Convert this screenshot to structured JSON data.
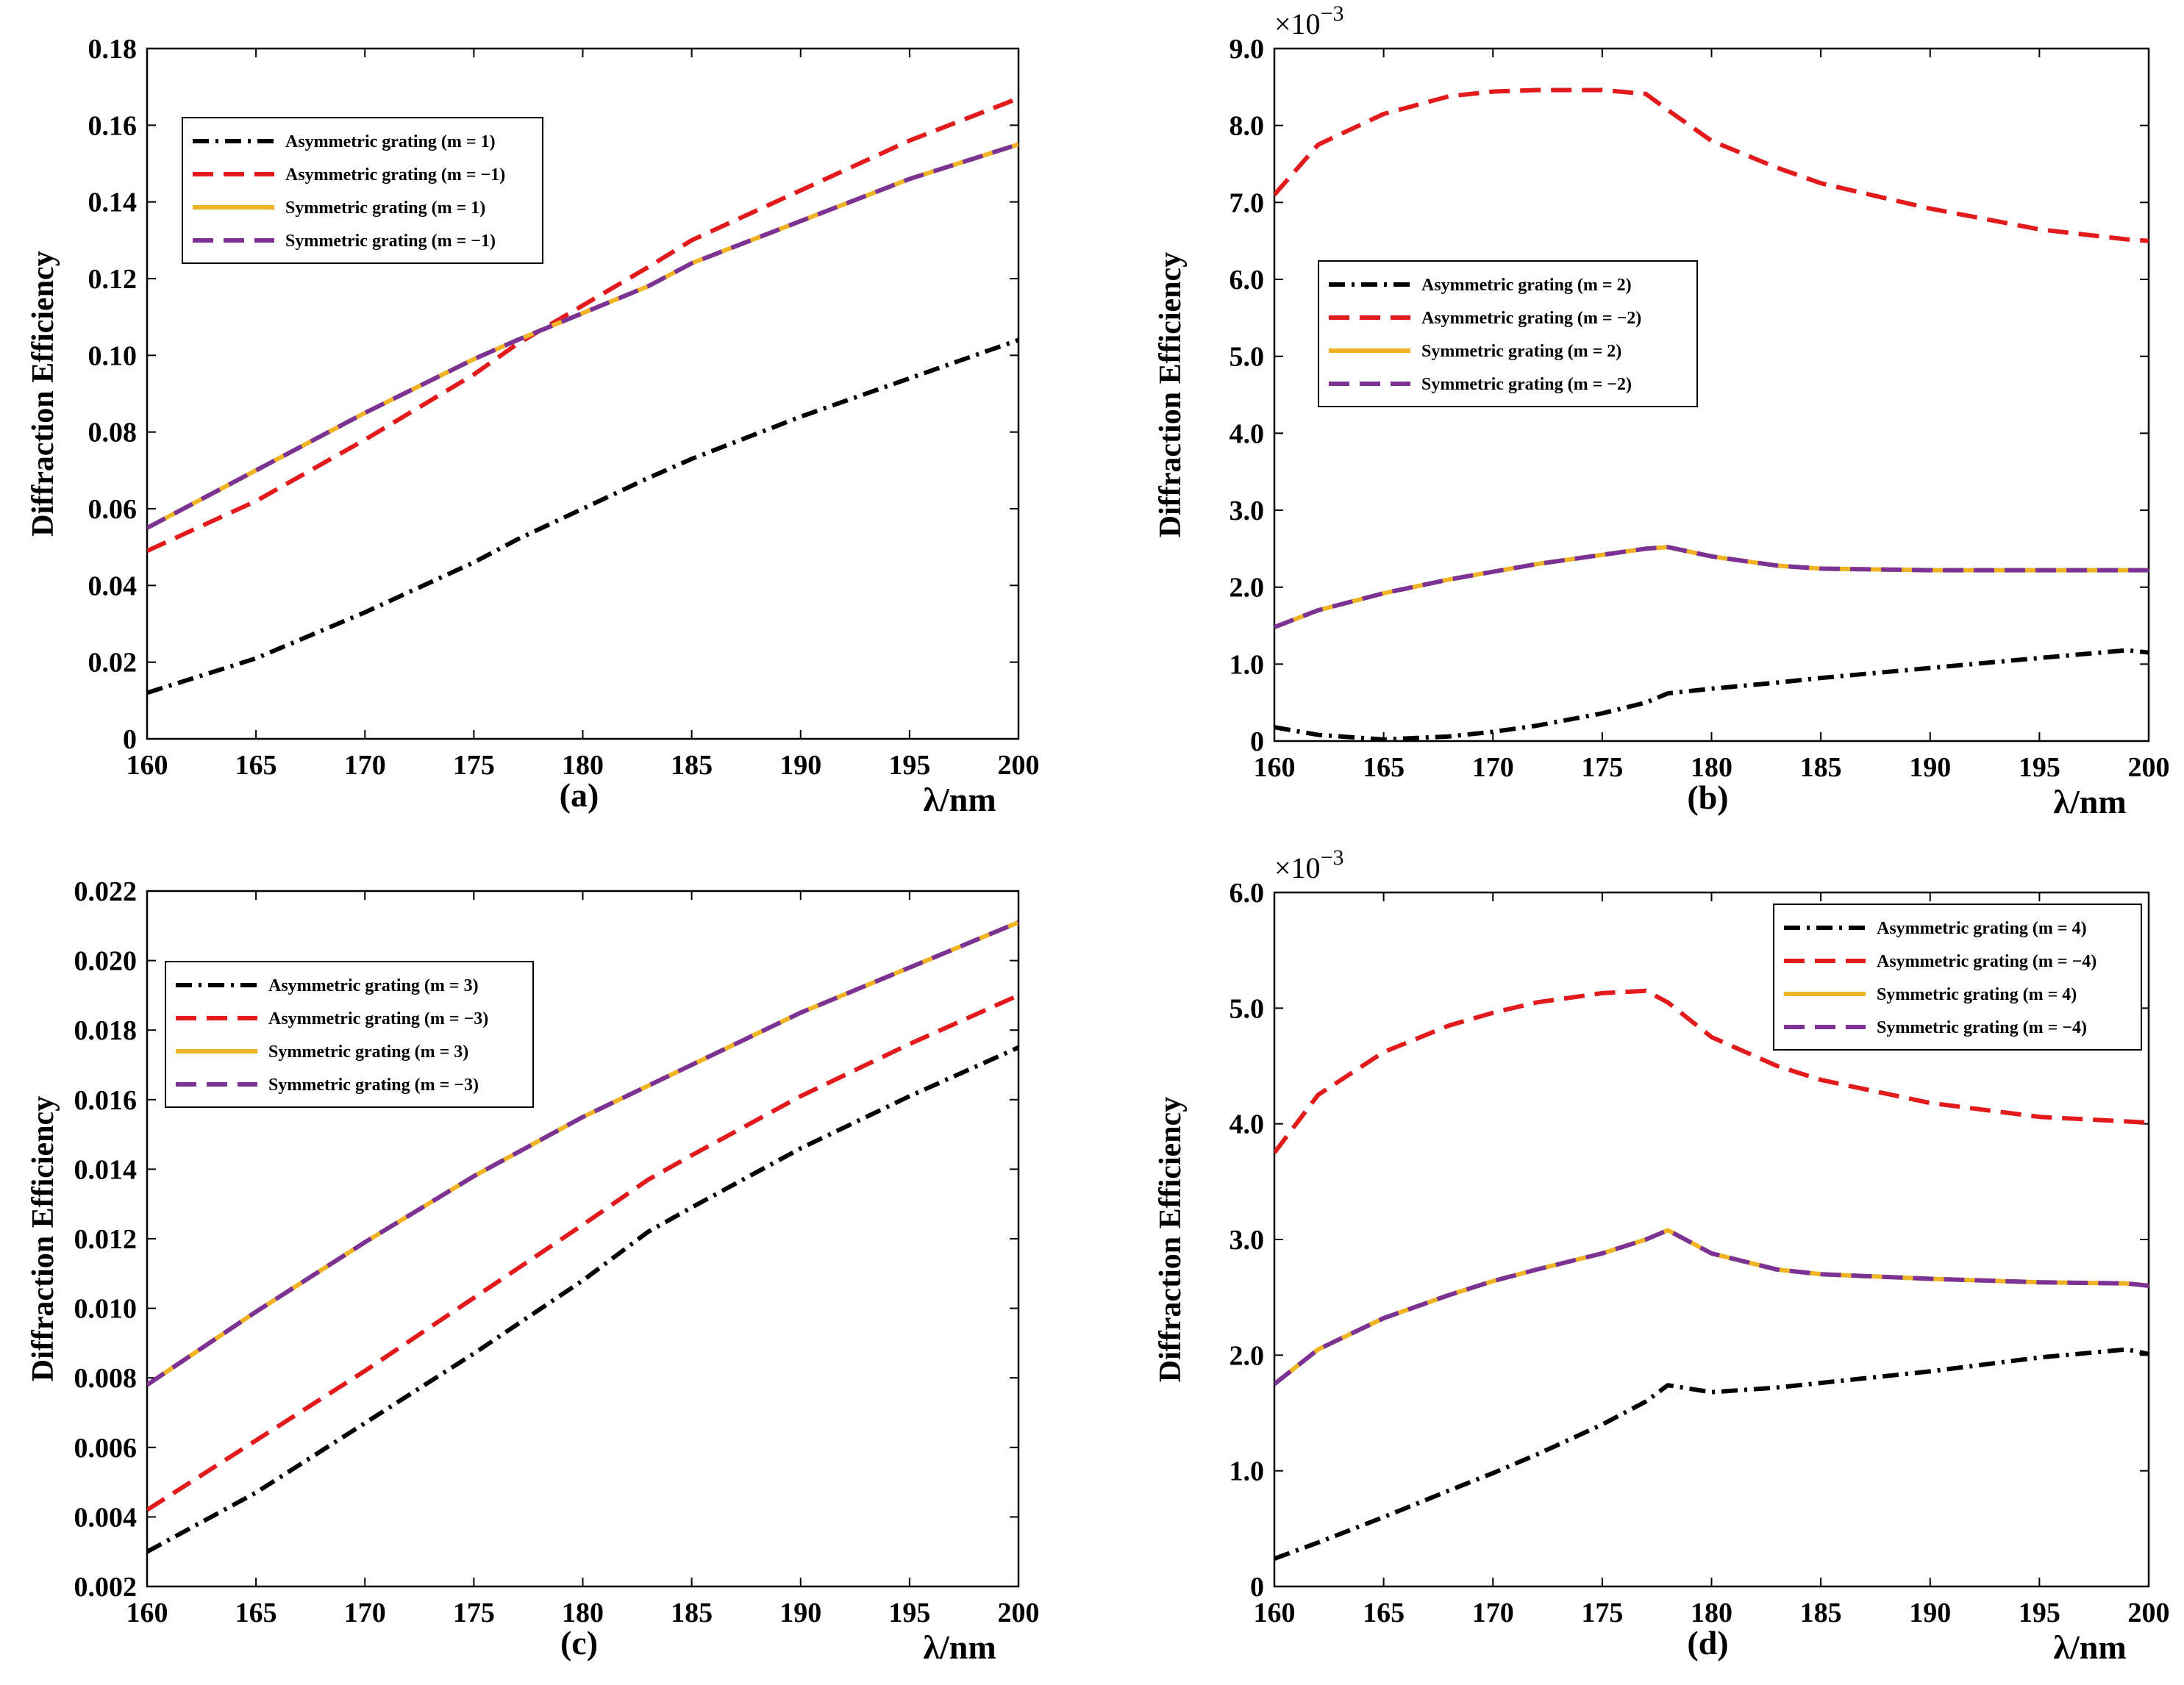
{
  "series_colors": {
    "asym_pos": "#000000",
    "asym_neg": "#e31a1c",
    "sym_pos": "#f0b323",
    "sym_neg": "#7b3294"
  },
  "chart_data": [
    {
      "type": "line",
      "panel": "(a)",
      "xlabel": "λ/nm",
      "ylabel": "Diffraction Efficiency",
      "multiplier": "",
      "xlim": [
        160,
        200
      ],
      "ylim": [
        0,
        0.18
      ],
      "xticks": [
        160,
        165,
        170,
        175,
        180,
        185,
        190,
        195,
        200
      ],
      "yticks": [
        "0",
        "0.02",
        "0.04",
        "0.06",
        "0.08",
        "0.10",
        "0.12",
        "0.14",
        "0.16",
        "0.18"
      ],
      "legend_position": "top-left",
      "x": [
        160,
        165,
        170,
        175,
        177,
        180,
        183,
        185,
        190,
        195,
        200
      ],
      "series": [
        {
          "name": "Asymmetric grating (m = 1)",
          "color": "#000000",
          "style": "dashdot",
          "values": [
            0.012,
            0.021,
            0.033,
            0.046,
            0.052,
            0.06,
            0.068,
            0.073,
            0.084,
            0.094,
            0.104
          ]
        },
        {
          "name": "Asymmetric grating (m = −1)",
          "color": "#e31a1c",
          "style": "dashed",
          "values": [
            0.049,
            0.062,
            0.078,
            0.095,
            0.103,
            0.113,
            0.123,
            0.13,
            0.143,
            0.156,
            0.167
          ]
        },
        {
          "name": "Symmetric grating (m = 1)",
          "color": "#f0b323",
          "style": "solid",
          "values": [
            0.055,
            0.07,
            0.085,
            0.099,
            0.104,
            0.111,
            0.118,
            0.124,
            0.135,
            0.146,
            0.155
          ]
        },
        {
          "name": "Symmetric grating (m = −1)",
          "color": "#7b3294",
          "style": "dashed",
          "values": [
            0.055,
            0.07,
            0.085,
            0.099,
            0.104,
            0.111,
            0.118,
            0.124,
            0.135,
            0.146,
            0.155
          ]
        }
      ]
    },
    {
      "type": "line",
      "panel": "(b)",
      "xlabel": "λ/nm",
      "ylabel": "Diffraction Efficiency",
      "multiplier": "×10",
      "multiplier_exp": "−3",
      "xlim": [
        160,
        200
      ],
      "ylim": [
        0,
        9.0
      ],
      "xticks": [
        160,
        165,
        170,
        175,
        180,
        185,
        190,
        195,
        200
      ],
      "yticks": [
        "0",
        "1.0",
        "2.0",
        "3.0",
        "4.0",
        "5.0",
        "6.0",
        "7.0",
        "8.0",
        "9.0"
      ],
      "legend_position": "center-left",
      "x": [
        160,
        162,
        165,
        168,
        170,
        172,
        175,
        177,
        178,
        180,
        183,
        185,
        190,
        195,
        199,
        200
      ],
      "series": [
        {
          "name": "Asymmetric grating (m = 2)",
          "color": "#000000",
          "style": "dashdot",
          "values": [
            0.18,
            0.08,
            0.02,
            0.06,
            0.12,
            0.2,
            0.36,
            0.5,
            0.62,
            0.68,
            0.76,
            0.82,
            0.95,
            1.08,
            1.18,
            1.15
          ]
        },
        {
          "name": "Asymmetric grating (m = −2)",
          "color": "#e31a1c",
          "style": "dashed",
          "values": [
            7.1,
            7.75,
            8.15,
            8.38,
            8.44,
            8.46,
            8.46,
            8.41,
            8.2,
            7.8,
            7.45,
            7.25,
            6.92,
            6.65,
            6.52,
            6.5
          ]
        },
        {
          "name": "Symmetric grating (m = 2)",
          "color": "#f0b323",
          "style": "solid",
          "values": [
            1.48,
            1.7,
            1.92,
            2.1,
            2.2,
            2.3,
            2.42,
            2.5,
            2.52,
            2.4,
            2.28,
            2.24,
            2.22,
            2.22,
            2.22,
            2.22
          ]
        },
        {
          "name": "Symmetric grating (m = −2)",
          "color": "#7b3294",
          "style": "dashed",
          "values": [
            1.48,
            1.7,
            1.92,
            2.1,
            2.2,
            2.3,
            2.42,
            2.5,
            2.52,
            2.4,
            2.28,
            2.24,
            2.22,
            2.22,
            2.22,
            2.22
          ]
        }
      ]
    },
    {
      "type": "line",
      "panel": "(c)",
      "xlabel": "λ/nm",
      "ylabel": "Diffraction Efficiency",
      "multiplier": "",
      "xlim": [
        160,
        200
      ],
      "ylim": [
        0.002,
        0.022
      ],
      "xticks": [
        160,
        165,
        170,
        175,
        180,
        185,
        190,
        195,
        200
      ],
      "yticks": [
        "0.002",
        "0.004",
        "0.006",
        "0.008",
        "0.010",
        "0.012",
        "0.014",
        "0.016",
        "0.018",
        "0.020",
        "0.022"
      ],
      "legend_position": "top-left",
      "x": [
        160,
        165,
        170,
        175,
        180,
        183,
        185,
        190,
        195,
        200
      ],
      "series": [
        {
          "name": "Asymmetric grating (m = 3)",
          "color": "#000000",
          "style": "dashdot",
          "values": [
            0.003,
            0.0047,
            0.0067,
            0.0087,
            0.0108,
            0.0122,
            0.0129,
            0.0146,
            0.0161,
            0.0175
          ]
        },
        {
          "name": "Asymmetric grating (m = −3)",
          "color": "#e31a1c",
          "style": "dashed",
          "values": [
            0.0042,
            0.0062,
            0.0082,
            0.0103,
            0.0124,
            0.0137,
            0.0144,
            0.0161,
            0.0176,
            0.019
          ]
        },
        {
          "name": "Symmetric grating (m = 3)",
          "color": "#f0b323",
          "style": "solid",
          "values": [
            0.0078,
            0.0099,
            0.0119,
            0.0138,
            0.0155,
            0.0164,
            0.017,
            0.0185,
            0.0198,
            0.0211
          ]
        },
        {
          "name": "Symmetric grating (m = −3)",
          "color": "#7b3294",
          "style": "dashed",
          "values": [
            0.0078,
            0.0099,
            0.0119,
            0.0138,
            0.0155,
            0.0164,
            0.017,
            0.0185,
            0.0198,
            0.0211
          ]
        }
      ]
    },
    {
      "type": "line",
      "panel": "(d)",
      "xlabel": "λ/nm",
      "ylabel": "Diffraction Efficiency",
      "multiplier": "×10",
      "multiplier_exp": "−3",
      "xlim": [
        160,
        200
      ],
      "ylim": [
        0,
        6.0
      ],
      "xticks": [
        160,
        165,
        170,
        175,
        180,
        185,
        190,
        195,
        200
      ],
      "yticks": [
        "0",
        "1.0",
        "2.0",
        "3.0",
        "4.0",
        "5.0",
        "6.0"
      ],
      "legend_position": "top-right",
      "x": [
        160,
        162,
        165,
        168,
        170,
        172,
        175,
        177,
        178,
        180,
        183,
        185,
        190,
        195,
        199,
        200
      ],
      "series": [
        {
          "name": "Asymmetric grating (m = 4)",
          "color": "#000000",
          "style": "dashdot",
          "values": [
            0.24,
            0.38,
            0.6,
            0.83,
            0.98,
            1.14,
            1.4,
            1.6,
            1.74,
            1.68,
            1.72,
            1.76,
            1.86,
            1.98,
            2.05,
            2.01
          ]
        },
        {
          "name": "Asymmetric grating (m = −4)",
          "color": "#e31a1c",
          "style": "dashed",
          "values": [
            3.75,
            4.25,
            4.62,
            4.85,
            4.96,
            5.05,
            5.13,
            5.15,
            5.05,
            4.75,
            4.5,
            4.38,
            4.18,
            4.06,
            4.02,
            4.01
          ]
        },
        {
          "name": "Symmetric grating (m = 4)",
          "color": "#f0b323",
          "style": "solid",
          "values": [
            1.75,
            2.05,
            2.32,
            2.52,
            2.64,
            2.74,
            2.88,
            3.0,
            3.08,
            2.88,
            2.74,
            2.7,
            2.66,
            2.63,
            2.62,
            2.6
          ]
        },
        {
          "name": "Symmetric grating (m = −4)",
          "color": "#7b3294",
          "style": "dashed",
          "values": [
            1.75,
            2.05,
            2.32,
            2.52,
            2.64,
            2.74,
            2.88,
            3.0,
            3.08,
            2.88,
            2.74,
            2.7,
            2.66,
            2.63,
            2.62,
            2.6
          ]
        }
      ]
    }
  ]
}
